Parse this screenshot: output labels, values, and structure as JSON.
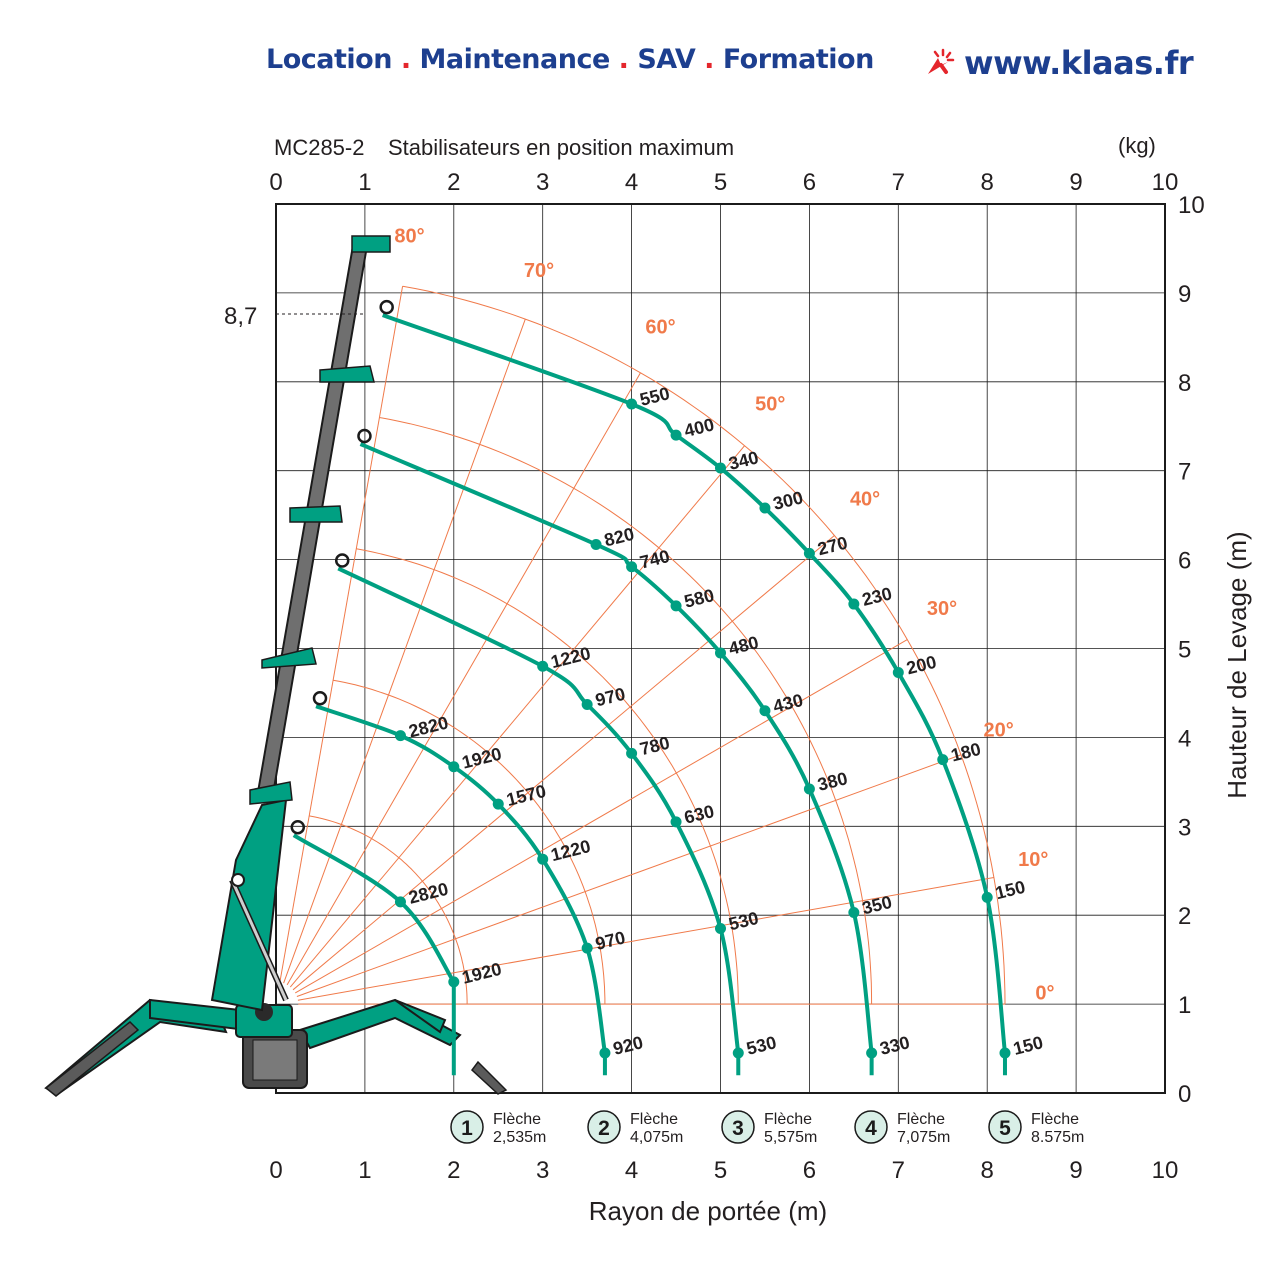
{
  "header": {
    "services": [
      "Location",
      "Maintenance",
      "SAV",
      "Formation"
    ],
    "separator": ".",
    "website": "www.klaas.fr",
    "brand_color": "#1d3f8f",
    "accent_color": "#e4262c",
    "cursor_icon": "cursor-click-icon"
  },
  "chart_data": {
    "type": "line",
    "title": "MC285-2",
    "subtitle": "Stabilisateurs en position maximum",
    "unit_label": "(kg)",
    "xlabel": "Rayon de portée (m)",
    "ylabel": "Hauteur de Levage (m)",
    "xlim": [
      0,
      10
    ],
    "ylim": [
      0,
      10
    ],
    "x_ticks": [
      "0",
      "1",
      "2",
      "3",
      "4",
      "5",
      "6",
      "7",
      "8",
      "9",
      "10"
    ],
    "y_ticks": [
      "0",
      "1",
      "2",
      "3",
      "4",
      "5",
      "6",
      "7",
      "8",
      "9",
      "10"
    ],
    "max_height_marker": {
      "label": "8,7",
      "y": 8.7
    },
    "grid": true,
    "curve_color": "#00a082",
    "angle_color": "#f07a4a",
    "angle_lines": [
      "0°",
      "10°",
      "20°",
      "30°",
      "40°",
      "50°",
      "60°",
      "70°",
      "80°"
    ],
    "series": [
      {
        "id": "1",
        "label": "Flèche",
        "length": "2,535m",
        "points": [
          {
            "x": 1.4,
            "y": 2.15,
            "load": "2820"
          },
          {
            "x": 2.0,
            "y": 1.25,
            "load": "1920"
          }
        ]
      },
      {
        "id": "2",
        "label": "Flèche",
        "length": "4,075m",
        "points": [
          {
            "x": 1.4,
            "y": 4.02,
            "load": "2820"
          },
          {
            "x": 2.0,
            "y": 3.67,
            "load": "1920"
          },
          {
            "x": 2.5,
            "y": 3.25,
            "load": "1570"
          },
          {
            "x": 3.0,
            "y": 2.63,
            "load": "1220"
          },
          {
            "x": 3.5,
            "y": 1.63,
            "load": "970"
          },
          {
            "x": 3.7,
            "y": 0.45,
            "load": "920"
          }
        ]
      },
      {
        "id": "3",
        "label": "Flèche",
        "length": "5,575m",
        "points": [
          {
            "x": 3.0,
            "y": 4.8,
            "load": "1220"
          },
          {
            "x": 3.5,
            "y": 4.37,
            "load": "970"
          },
          {
            "x": 4.0,
            "y": 3.82,
            "load": "780"
          },
          {
            "x": 4.5,
            "y": 3.05,
            "load": "630"
          },
          {
            "x": 5.0,
            "y": 1.85,
            "load": "530"
          },
          {
            "x": 5.2,
            "y": 0.45,
            "load": "530"
          }
        ]
      },
      {
        "id": "4",
        "label": "Flèche",
        "length": "7,075m",
        "points": [
          {
            "x": 3.6,
            "y": 6.17,
            "load": "820"
          },
          {
            "x": 4.0,
            "y": 5.92,
            "load": "740"
          },
          {
            "x": 4.5,
            "y": 5.48,
            "load": "580"
          },
          {
            "x": 5.0,
            "y": 4.95,
            "load": "480"
          },
          {
            "x": 5.5,
            "y": 4.3,
            "load": "430"
          },
          {
            "x": 6.0,
            "y": 3.42,
            "load": "380"
          },
          {
            "x": 6.5,
            "y": 2.03,
            "load": "350"
          },
          {
            "x": 6.7,
            "y": 0.45,
            "load": "330"
          }
        ]
      },
      {
        "id": "5",
        "label": "Flèche",
        "length": "8.575m",
        "points": [
          {
            "x": 4.0,
            "y": 7.75,
            "load": "550"
          },
          {
            "x": 4.5,
            "y": 7.4,
            "load": "400"
          },
          {
            "x": 5.0,
            "y": 7.03,
            "load": "340"
          },
          {
            "x": 5.5,
            "y": 6.58,
            "load": "300"
          },
          {
            "x": 6.0,
            "y": 6.07,
            "load": "270"
          },
          {
            "x": 6.5,
            "y": 5.5,
            "load": "230"
          },
          {
            "x": 7.0,
            "y": 4.73,
            "load": "200"
          },
          {
            "x": 7.5,
            "y": 3.75,
            "load": "180"
          },
          {
            "x": 8.0,
            "y": 2.2,
            "load": "150"
          },
          {
            "x": 8.2,
            "y": 0.45,
            "load": "150"
          }
        ]
      }
    ]
  }
}
